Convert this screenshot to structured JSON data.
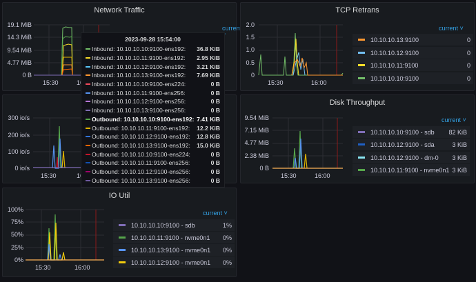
{
  "panels": {
    "network_traffic": {
      "title": "Network Traffic",
      "y_ticks": [
        "19.1 MiB",
        "14.3 MiB",
        "9.54 MiB",
        "4.77 MiB",
        "0 B"
      ],
      "x_ticks": [
        "15:30",
        "16"
      ],
      "legend_sort": "current"
    },
    "iops": {
      "y_ticks": [
        "300 io/s",
        "200 io/s",
        "100 io/s",
        "0 io/s"
      ],
      "x_ticks": [
        "15:30",
        "16"
      ]
    },
    "tcp_retrans": {
      "title": "TCP Retrans",
      "y_ticks": [
        "2.0",
        "1.5",
        "1.0",
        "0.5",
        "0"
      ],
      "x_ticks": [
        "15:30",
        "16:00"
      ],
      "legend_sort": "current",
      "legend": [
        {
          "label": "10.10.10.13:9100",
          "value": "0",
          "color": "#ff9830"
        },
        {
          "label": "10.10.10.12:9100",
          "value": "0",
          "color": "#73bff2"
        },
        {
          "label": "10.10.10.11:9100",
          "value": "0",
          "color": "#fade2a"
        },
        {
          "label": "10.10.10.10:9100",
          "value": "0",
          "color": "#73bf69"
        }
      ]
    },
    "disk_throughput": {
      "title": "Disk Throughput",
      "y_ticks": [
        "9.54 MiB",
        "7.15 MiB",
        "4.77 MiB",
        "2.38 MiB",
        "0 B"
      ],
      "x_ticks": [
        "15:30",
        "16:00"
      ],
      "legend_sort": "current",
      "legend": [
        {
          "label": "10.10.10.10:9100 - sdb",
          "value": "82 KiB",
          "color": "#806eb7"
        },
        {
          "label": "10.10.10.12:9100 - sda",
          "value": "3 KiB",
          "color": "#1f60c4"
        },
        {
          "label": "10.10.10.12:9100 - dm-0",
          "value": "3 KiB",
          "color": "#8ae6f2"
        },
        {
          "label": "10.10.10.11:9100 - nvme0n1",
          "value": "3 KiB",
          "color": "#56a64b"
        }
      ]
    },
    "io_util": {
      "title": "IO Util",
      "y_ticks": [
        "100%",
        "75%",
        "50%",
        "25%",
        "0%"
      ],
      "x_ticks": [
        "15:30",
        "16:00"
      ],
      "legend_sort": "current",
      "legend": [
        {
          "label": "10.10.10.10:9100 - sdb",
          "value": "1%",
          "color": "#806eb7"
        },
        {
          "label": "10.10.10.11:9100 - nvme0n1",
          "value": "0%",
          "color": "#56a64b"
        },
        {
          "label": "10.10.10.13:9100 - nvme0n1",
          "value": "0%",
          "color": "#5794f2"
        },
        {
          "label": "10.10.10.12:9100 - nvme0n1",
          "value": "0%",
          "color": "#f2cc0c"
        }
      ]
    }
  },
  "tooltip": {
    "time": "2023-09-28 15:54:00",
    "rows": [
      {
        "label": "Inbound: 10.10.10.10:9100-ens192:",
        "value": "36.8 KiB",
        "color": "#73bf69"
      },
      {
        "label": "Inbound: 10.10.10.11:9100-ens192:",
        "value": "2.95 KiB",
        "color": "#fade2a"
      },
      {
        "label": "Inbound: 10.10.10.12:9100-ens192:",
        "value": "3.21 KiB",
        "color": "#5ac8fa"
      },
      {
        "label": "Inbound: 10.10.10.13:9100-ens192:",
        "value": "7.69 KiB",
        "color": "#ff9830"
      },
      {
        "label": "Inbound: 10.10.10.10:9100-ens224:",
        "value": "0 B",
        "color": "#f2495c"
      },
      {
        "label": "Inbound: 10.10.10.11:9100-ens256:",
        "value": "0 B",
        "color": "#5794f2"
      },
      {
        "label": "Inbound: 10.10.10.12:9100-ens256:",
        "value": "0 B",
        "color": "#b877d9"
      },
      {
        "label": "Inbound: 10.10.10.13:9100-ens256:",
        "value": "0 B",
        "color": "#806eb7"
      },
      {
        "label": "Outbound: 10.10.10.10:9100-ens192:",
        "value": "7.41 KiB",
        "color": "#56a64b",
        "highlight": true
      },
      {
        "label": "Outbound: 10.10.10.11:9100-ens192:",
        "value": "12.2 KiB",
        "color": "#e0b400"
      },
      {
        "label": "Outbound: 10.10.10.12:9100-ens192:",
        "value": "12.8 KiB",
        "color": "#3274d9"
      },
      {
        "label": "Outbound: 10.10.10.13:9100-ens192:",
        "value": "15.0 KiB",
        "color": "#fa6400"
      },
      {
        "label": "Outbound: 10.10.10.10:9100-ens224:",
        "value": "0 B",
        "color": "#c4162a"
      },
      {
        "label": "Outbound: 10.10.10.11:9100-ens256:",
        "value": "0 B",
        "color": "#1250b0"
      },
      {
        "label": "Outbound: 10.10.10.12:9100-ens256:",
        "value": "0 B",
        "color": "#a1006b"
      },
      {
        "label": "Outbound: 10.10.10.13:9100-ens256:",
        "value": "0 B",
        "color": "#6e5aa0"
      }
    ]
  }
}
